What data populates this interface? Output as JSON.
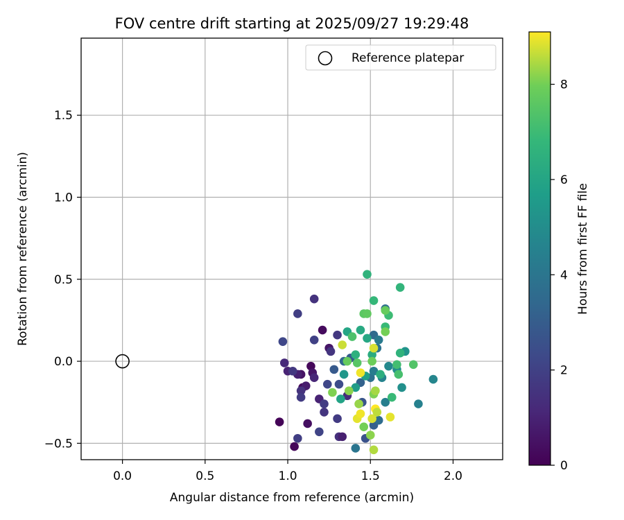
{
  "chart_data": {
    "type": "scatter",
    "title": "FOV centre drift starting at 2025/09/27 19:29:48",
    "xlabel": "Angular distance from reference (arcmin)",
    "ylabel": "Rotation from reference (arcmin)",
    "xlim": [
      -0.25,
      2.3
    ],
    "ylim": [
      -0.6,
      1.97
    ],
    "xticks": [
      0.0,
      0.5,
      1.0,
      1.5,
      2.0
    ],
    "xtick_labels": [
      "0.0",
      "0.5",
      "1.0",
      "1.5",
      "2.0"
    ],
    "yticks": [
      -0.5,
      0.0,
      0.5,
      1.0,
      1.5
    ],
    "ytick_labels": [
      "−0.5",
      "0.0",
      "0.5",
      "1.0",
      "1.5"
    ],
    "grid": true,
    "legend": {
      "position": "top-right",
      "entries": [
        "Reference platepar"
      ]
    },
    "reference": {
      "x": 0.0,
      "y": 0.0,
      "label": "Reference platepar"
    },
    "colorbar": {
      "label": "Hours from first FF file",
      "range": [
        0,
        9.1
      ],
      "ticks": [
        0,
        2,
        4,
        6,
        8
      ],
      "tick_labels": [
        "0",
        "2",
        "4",
        "6",
        "8"
      ],
      "colormap": "viridis"
    },
    "points": [
      {
        "x": 0.95,
        "y": -0.37,
        "h": 0.1
      },
      {
        "x": 1.04,
        "y": -0.52,
        "h": 0.2
      },
      {
        "x": 1.12,
        "y": -0.38,
        "h": 0.4
      },
      {
        "x": 1.09,
        "y": -0.16,
        "h": 0.3
      },
      {
        "x": 1.08,
        "y": -0.08,
        "h": 0.5
      },
      {
        "x": 1.14,
        "y": -0.03,
        "h": 0.2
      },
      {
        "x": 1.15,
        "y": -0.07,
        "h": 0.6
      },
      {
        "x": 1.11,
        "y": -0.15,
        "h": 0.8
      },
      {
        "x": 1.21,
        "y": 0.19,
        "h": 0.3
      },
      {
        "x": 1.25,
        "y": 0.08,
        "h": 0.6
      },
      {
        "x": 1.06,
        "y": -0.08,
        "h": 0.9
      },
      {
        "x": 1.0,
        "y": -0.06,
        "h": 1.0
      },
      {
        "x": 0.98,
        "y": -0.01,
        "h": 1.2
      },
      {
        "x": 1.03,
        "y": -0.06,
        "h": 1.7
      },
      {
        "x": 1.08,
        "y": -0.18,
        "h": 1.5
      },
      {
        "x": 1.08,
        "y": -0.22,
        "h": 1.8
      },
      {
        "x": 1.06,
        "y": -0.47,
        "h": 1.9
      },
      {
        "x": 1.16,
        "y": -0.1,
        "h": 1.1
      },
      {
        "x": 1.19,
        "y": -0.23,
        "h": 1.0
      },
      {
        "x": 1.16,
        "y": 0.38,
        "h": 1.5
      },
      {
        "x": 1.06,
        "y": 0.29,
        "h": 1.9
      },
      {
        "x": 0.97,
        "y": 0.12,
        "h": 2.2
      },
      {
        "x": 1.16,
        "y": 0.13,
        "h": 2.0
      },
      {
        "x": 1.26,
        "y": 0.06,
        "h": 1.6
      },
      {
        "x": 1.3,
        "y": 0.16,
        "h": 1.7
      },
      {
        "x": 1.22,
        "y": -0.26,
        "h": 1.8
      },
      {
        "x": 1.22,
        "y": -0.31,
        "h": 1.6
      },
      {
        "x": 1.19,
        "y": -0.43,
        "h": 2.1
      },
      {
        "x": 1.31,
        "y": -0.46,
        "h": 1.4
      },
      {
        "x": 1.3,
        "y": -0.35,
        "h": 1.8
      },
      {
        "x": 1.33,
        "y": -0.46,
        "h": 0.9
      },
      {
        "x": 1.36,
        "y": -0.21,
        "h": 1.3
      },
      {
        "x": 1.24,
        "y": -0.14,
        "h": 2.2
      },
      {
        "x": 1.31,
        "y": -0.14,
        "h": 2.4
      },
      {
        "x": 1.28,
        "y": -0.05,
        "h": 2.9
      },
      {
        "x": 1.34,
        "y": 0.0,
        "h": 3.4
      },
      {
        "x": 1.38,
        "y": 0.02,
        "h": 3.0
      },
      {
        "x": 1.45,
        "y": -0.25,
        "h": 2.7
      },
      {
        "x": 1.44,
        "y": -0.13,
        "h": 3.2
      },
      {
        "x": 1.47,
        "y": -0.47,
        "h": 2.6
      },
      {
        "x": 1.52,
        "y": -0.39,
        "h": 3.1
      },
      {
        "x": 1.55,
        "y": -0.36,
        "h": 3.6
      },
      {
        "x": 1.41,
        "y": -0.53,
        "h": 4.0
      },
      {
        "x": 1.5,
        "y": -0.1,
        "h": 3.8
      },
      {
        "x": 1.52,
        "y": -0.06,
        "h": 4.3
      },
      {
        "x": 1.54,
        "y": 0.08,
        "h": 3.9
      },
      {
        "x": 1.52,
        "y": 0.16,
        "h": 3.5
      },
      {
        "x": 1.55,
        "y": 0.13,
        "h": 4.2
      },
      {
        "x": 1.57,
        "y": -0.1,
        "h": 4.6
      },
      {
        "x": 1.59,
        "y": 0.32,
        "h": 3.7
      },
      {
        "x": 1.59,
        "y": -0.25,
        "h": 4.4
      },
      {
        "x": 1.61,
        "y": -0.03,
        "h": 4.8
      },
      {
        "x": 1.66,
        "y": -0.05,
        "h": 5.0
      },
      {
        "x": 1.71,
        "y": 0.06,
        "h": 5.3
      },
      {
        "x": 1.69,
        "y": -0.16,
        "h": 5.1
      },
      {
        "x": 1.79,
        "y": -0.26,
        "h": 4.5
      },
      {
        "x": 1.88,
        "y": -0.11,
        "h": 4.7
      },
      {
        "x": 1.34,
        "y": -0.08,
        "h": 5.4
      },
      {
        "x": 1.41,
        "y": -0.16,
        "h": 5.6
      },
      {
        "x": 1.47,
        "y": -0.09,
        "h": 5.8
      },
      {
        "x": 1.32,
        "y": -0.23,
        "h": 5.9
      },
      {
        "x": 1.36,
        "y": 0.18,
        "h": 6.0
      },
      {
        "x": 1.44,
        "y": 0.19,
        "h": 6.2
      },
      {
        "x": 1.48,
        "y": 0.14,
        "h": 6.1
      },
      {
        "x": 1.51,
        "y": 0.04,
        "h": 6.3
      },
      {
        "x": 1.56,
        "y": -0.08,
        "h": 6.4
      },
      {
        "x": 1.41,
        "y": 0.04,
        "h": 6.5
      },
      {
        "x": 1.48,
        "y": 0.53,
        "h": 6.6
      },
      {
        "x": 1.68,
        "y": 0.45,
        "h": 6.7
      },
      {
        "x": 1.52,
        "y": 0.37,
        "h": 6.8
      },
      {
        "x": 1.61,
        "y": 0.28,
        "h": 7.0
      },
      {
        "x": 1.59,
        "y": 0.21,
        "h": 6.9
      },
      {
        "x": 1.68,
        "y": 0.05,
        "h": 6.6
      },
      {
        "x": 1.66,
        "y": -0.02,
        "h": 7.1
      },
      {
        "x": 1.67,
        "y": -0.08,
        "h": 7.2
      },
      {
        "x": 1.63,
        "y": -0.22,
        "h": 6.9
      },
      {
        "x": 1.76,
        "y": -0.02,
        "h": 7.4
      },
      {
        "x": 1.39,
        "y": 0.15,
        "h": 7.3
      },
      {
        "x": 1.46,
        "y": 0.29,
        "h": 7.6
      },
      {
        "x": 1.48,
        "y": 0.29,
        "h": 7.7
      },
      {
        "x": 1.59,
        "y": 0.31,
        "h": 7.8
      },
      {
        "x": 1.59,
        "y": 0.18,
        "h": 8.0
      },
      {
        "x": 1.51,
        "y": 0.0,
        "h": 7.9
      },
      {
        "x": 1.42,
        "y": -0.01,
        "h": 7.5
      },
      {
        "x": 1.36,
        "y": 0.0,
        "h": 7.8
      },
      {
        "x": 1.27,
        "y": -0.19,
        "h": 8.1
      },
      {
        "x": 1.37,
        "y": -0.18,
        "h": 8.2
      },
      {
        "x": 1.43,
        "y": -0.26,
        "h": 8.3
      },
      {
        "x": 1.52,
        "y": -0.2,
        "h": 8.1
      },
      {
        "x": 1.53,
        "y": -0.18,
        "h": 8.4
      },
      {
        "x": 1.46,
        "y": -0.4,
        "h": 8.0
      },
      {
        "x": 1.5,
        "y": -0.45,
        "h": 8.2
      },
      {
        "x": 1.52,
        "y": -0.54,
        "h": 8.5
      },
      {
        "x": 1.33,
        "y": 0.1,
        "h": 8.7
      },
      {
        "x": 1.52,
        "y": 0.08,
        "h": 8.8
      },
      {
        "x": 1.44,
        "y": -0.07,
        "h": 9.0
      },
      {
        "x": 1.42,
        "y": -0.35,
        "h": 8.9
      },
      {
        "x": 1.44,
        "y": -0.32,
        "h": 9.0
      },
      {
        "x": 1.51,
        "y": -0.35,
        "h": 8.8
      },
      {
        "x": 1.53,
        "y": -0.29,
        "h": 9.1
      },
      {
        "x": 1.62,
        "y": -0.34,
        "h": 8.9
      },
      {
        "x": 1.54,
        "y": -0.31,
        "h": 8.6
      }
    ]
  }
}
